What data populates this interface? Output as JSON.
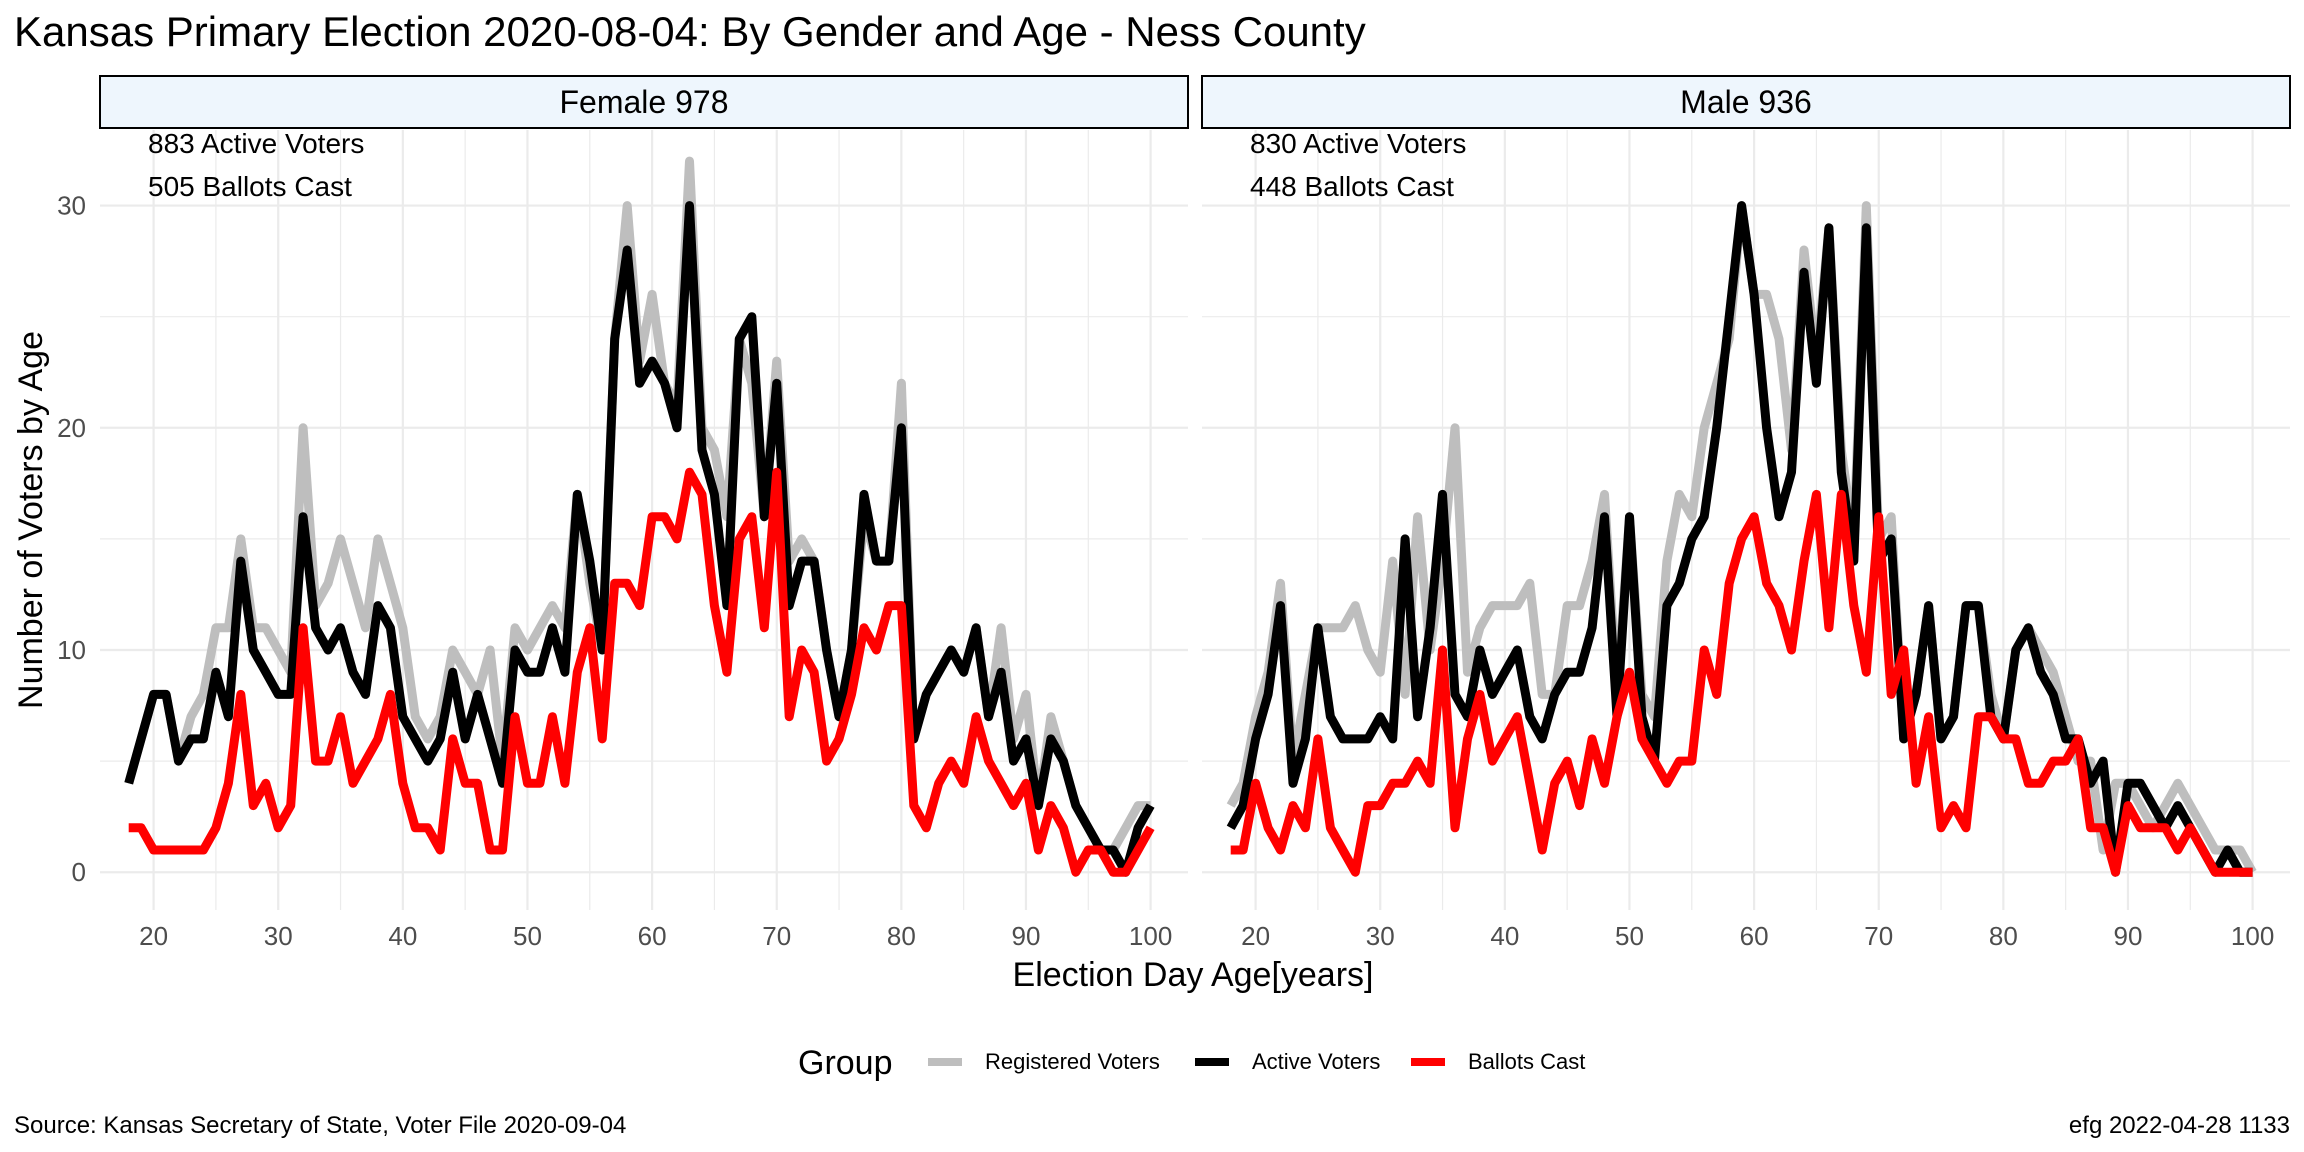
{
  "title": "Kansas Primary Election 2020-08-04:  By Gender and Age - Ness County",
  "caption_left": "Source:  Kansas Secretary of State, Voter File  2020-09-04",
  "caption_right": "efg 2022-04-28 1133",
  "colors": {
    "registered": "#bebebe",
    "active": "#000000",
    "ballots": "#ff0000",
    "strip_fill": "#eef6fd",
    "grid": "#ebebeb"
  },
  "chart_data": {
    "type": "line",
    "xlabel": "Election Day Age[years]",
    "ylabel": "Number of Voters by Age",
    "xlim": [
      18,
      100
    ],
    "ylim": [
      0,
      32
    ],
    "x_ticks": [
      20,
      30,
      40,
      50,
      60,
      70,
      80,
      90,
      100
    ],
    "y_ticks": [
      0,
      10,
      20,
      30
    ],
    "legend": {
      "title": "Group",
      "position": "bottom",
      "entries": [
        {
          "label": "Registered Voters",
          "color": "#bebebe"
        },
        {
          "label": "Active Voters",
          "color": "#000000"
        },
        {
          "label": "Ballots Cast",
          "color": "#ff0000"
        }
      ]
    },
    "panels": [
      {
        "strip": "Female 978",
        "annotations": [
          "883 Active Voters",
          "505 Ballots Cast"
        ],
        "series": [
          {
            "name": "Registered Voters",
            "x": [
              18,
              19,
              20,
              21,
              22,
              23,
              24,
              25,
              26,
              27,
              28,
              29,
              30,
              31,
              32,
              33,
              34,
              35,
              36,
              37,
              38,
              39,
              40,
              41,
              42,
              43,
              44,
              45,
              46,
              47,
              48,
              49,
              50,
              51,
              52,
              53,
              54,
              55,
              56,
              57,
              58,
              59,
              60,
              61,
              62,
              63,
              64,
              65,
              66,
              67,
              68,
              69,
              70,
              71,
              72,
              73,
              74,
              75,
              76,
              77,
              78,
              79,
              80,
              81,
              82,
              83,
              84,
              85,
              86,
              87,
              88,
              89,
              90,
              91,
              92,
              93,
              94,
              95,
              96,
              97,
              98,
              99,
              100
            ],
            "y": [
              4,
              6,
              8,
              8,
              5,
              7,
              8,
              11,
              11,
              15,
              11,
              11,
              10,
              9,
              20,
              12,
              13,
              15,
              13,
              11,
              15,
              13,
              11,
              7,
              6,
              7,
              10,
              9,
              8,
              10,
              5,
              11,
              10,
              11,
              12,
              11,
              17,
              13,
              10,
              24,
              30,
              23,
              26,
              22,
              21,
              32,
              20,
              19,
              16,
              24,
              22,
              16,
              23,
              14,
              15,
              14,
              10,
              7,
              10,
              16,
              14,
              14,
              22,
              6,
              8,
              9,
              10,
              9,
              11,
              7,
              11,
              6,
              8,
              3,
              7,
              5,
              3,
              2,
              1,
              1,
              2,
              3,
              3
            ]
          },
          {
            "name": "Active Voters",
            "x": [
              18,
              19,
              20,
              21,
              22,
              23,
              24,
              25,
              26,
              27,
              28,
              29,
              30,
              31,
              32,
              33,
              34,
              35,
              36,
              37,
              38,
              39,
              40,
              41,
              42,
              43,
              44,
              45,
              46,
              47,
              48,
              49,
              50,
              51,
              52,
              53,
              54,
              55,
              56,
              57,
              58,
              59,
              60,
              61,
              62,
              63,
              64,
              65,
              66,
              67,
              68,
              69,
              70,
              71,
              72,
              73,
              74,
              75,
              76,
              77,
              78,
              79,
              80,
              81,
              82,
              83,
              84,
              85,
              86,
              87,
              88,
              89,
              90,
              91,
              92,
              93,
              94,
              95,
              96,
              97,
              98,
              99,
              100
            ],
            "y": [
              4,
              6,
              8,
              8,
              5,
              6,
              6,
              9,
              7,
              14,
              10,
              9,
              8,
              8,
              16,
              11,
              10,
              11,
              9,
              8,
              12,
              11,
              7,
              6,
              5,
              6,
              9,
              6,
              8,
              6,
              4,
              10,
              9,
              9,
              11,
              9,
              17,
              14,
              10,
              24,
              28,
              22,
              23,
              22,
              20,
              30,
              19,
              17,
              12,
              24,
              25,
              16,
              22,
              12,
              14,
              14,
              10,
              7,
              10,
              17,
              14,
              14,
              20,
              6,
              8,
              9,
              10,
              9,
              11,
              7,
              9,
              5,
              6,
              3,
              6,
              5,
              3,
              2,
              1,
              1,
              0,
              2,
              3
            ]
          },
          {
            "name": "Ballots Cast",
            "x": [
              18,
              19,
              20,
              21,
              22,
              23,
              24,
              25,
              26,
              27,
              28,
              29,
              30,
              31,
              32,
              33,
              34,
              35,
              36,
              37,
              38,
              39,
              40,
              41,
              42,
              43,
              44,
              45,
              46,
              47,
              48,
              49,
              50,
              51,
              52,
              53,
              54,
              55,
              56,
              57,
              58,
              59,
              60,
              61,
              62,
              63,
              64,
              65,
              66,
              67,
              68,
              69,
              70,
              71,
              72,
              73,
              74,
              75,
              76,
              77,
              78,
              79,
              80,
              81,
              82,
              83,
              84,
              85,
              86,
              87,
              88,
              89,
              90,
              91,
              92,
              93,
              94,
              95,
              96,
              97,
              98,
              99,
              100
            ],
            "y": [
              2,
              2,
              1,
              1,
              1,
              1,
              1,
              2,
              4,
              8,
              3,
              4,
              2,
              3,
              11,
              5,
              5,
              7,
              4,
              5,
              6,
              8,
              4,
              2,
              2,
              1,
              6,
              4,
              4,
              1,
              1,
              7,
              4,
              4,
              7,
              4,
              9,
              11,
              6,
              13,
              13,
              12,
              16,
              16,
              15,
              18,
              17,
              12,
              9,
              15,
              16,
              11,
              18,
              7,
              10,
              9,
              5,
              6,
              8,
              11,
              10,
              12,
              12,
              3,
              2,
              4,
              5,
              4,
              7,
              5,
              4,
              3,
              4,
              1,
              3,
              2,
              0,
              1,
              1,
              0,
              0,
              1,
              2
            ]
          }
        ]
      },
      {
        "strip": "Male 936",
        "annotations": [
          "830 Active Voters",
          "448 Ballots Cast"
        ],
        "series": [
          {
            "name": "Registered Voters",
            "x": [
              18,
              19,
              20,
              21,
              22,
              23,
              24,
              25,
              26,
              27,
              28,
              29,
              30,
              31,
              32,
              33,
              34,
              35,
              36,
              37,
              38,
              39,
              40,
              41,
              42,
              43,
              44,
              45,
              46,
              47,
              48,
              49,
              50,
              51,
              52,
              53,
              54,
              55,
              56,
              57,
              58,
              59,
              60,
              61,
              62,
              63,
              64,
              65,
              66,
              67,
              68,
              69,
              70,
              71,
              72,
              73,
              74,
              75,
              76,
              77,
              78,
              79,
              80,
              81,
              82,
              83,
              84,
              85,
              86,
              87,
              88,
              89,
              90,
              91,
              92,
              93,
              94,
              95,
              96,
              97,
              98,
              99,
              100
            ],
            "y": [
              3,
              4,
              7,
              9,
              13,
              5,
              8,
              11,
              11,
              11,
              12,
              10,
              9,
              14,
              8,
              16,
              10,
              14,
              20,
              9,
              11,
              12,
              12,
              12,
              13,
              8,
              8,
              12,
              12,
              14,
              17,
              8,
              16,
              8,
              7,
              14,
              17,
              16,
              20,
              22,
              24,
              30,
              26,
              26,
              24,
              19,
              28,
              23,
              29,
              19,
              15,
              30,
              15,
              16,
              6,
              8,
              12,
              6,
              7,
              12,
              12,
              8,
              6,
              10,
              11,
              10,
              9,
              7,
              5,
              5,
              1,
              4,
              4,
              3,
              2,
              3,
              4,
              3,
              2,
              1,
              1,
              1,
              0
            ]
          },
          {
            "name": "Active Voters",
            "x": [
              18,
              19,
              20,
              21,
              22,
              23,
              24,
              25,
              26,
              27,
              28,
              29,
              30,
              31,
              32,
              33,
              34,
              35,
              36,
              37,
              38,
              39,
              40,
              41,
              42,
              43,
              44,
              45,
              46,
              47,
              48,
              49,
              50,
              51,
              52,
              53,
              54,
              55,
              56,
              57,
              58,
              59,
              60,
              61,
              62,
              63,
              64,
              65,
              66,
              67,
              68,
              69,
              70,
              71,
              72,
              73,
              74,
              75,
              76,
              77,
              78,
              79,
              80,
              81,
              82,
              83,
              84,
              85,
              86,
              87,
              88,
              89,
              90,
              91,
              92,
              93,
              94,
              95,
              96,
              97,
              98,
              99,
              100
            ],
            "y": [
              2,
              3,
              6,
              8,
              12,
              4,
              6,
              11,
              7,
              6,
              6,
              6,
              7,
              6,
              15,
              7,
              11,
              17,
              8,
              7,
              10,
              8,
              9,
              10,
              7,
              6,
              8,
              9,
              9,
              11,
              16,
              7,
              16,
              7,
              5,
              12,
              13,
              15,
              16,
              20,
              25,
              30,
              26,
              20,
              16,
              18,
              27,
              22,
              29,
              18,
              14,
              29,
              14,
              15,
              6,
              8,
              12,
              6,
              7,
              12,
              12,
              7,
              6,
              10,
              11,
              9,
              8,
              6,
              6,
              4,
              5,
              0,
              4,
              4,
              3,
              2,
              3,
              2,
              1,
              0,
              1,
              0,
              0
            ]
          },
          {
            "name": "Ballots Cast",
            "x": [
              18,
              19,
              20,
              21,
              22,
              23,
              24,
              25,
              26,
              27,
              28,
              29,
              30,
              31,
              32,
              33,
              34,
              35,
              36,
              37,
              38,
              39,
              40,
              41,
              42,
              43,
              44,
              45,
              46,
              47,
              48,
              49,
              50,
              51,
              52,
              53,
              54,
              55,
              56,
              57,
              58,
              59,
              60,
              61,
              62,
              63,
              64,
              65,
              66,
              67,
              68,
              69,
              70,
              71,
              72,
              73,
              74,
              75,
              76,
              77,
              78,
              79,
              80,
              81,
              82,
              83,
              84,
              85,
              86,
              87,
              88,
              89,
              90,
              91,
              92,
              93,
              94,
              95,
              96,
              97,
              98,
              99,
              100
            ],
            "y": [
              1,
              1,
              4,
              2,
              1,
              3,
              2,
              6,
              2,
              1,
              0,
              3,
              3,
              4,
              4,
              5,
              4,
              10,
              2,
              6,
              8,
              5,
              6,
              7,
              4,
              1,
              4,
              5,
              3,
              6,
              4,
              7,
              9,
              6,
              5,
              4,
              5,
              5,
              10,
              8,
              13,
              15,
              16,
              13,
              12,
              10,
              14,
              17,
              11,
              17,
              12,
              9,
              16,
              8,
              10,
              4,
              7,
              2,
              3,
              2,
              7,
              7,
              6,
              6,
              4,
              4,
              5,
              5,
              6,
              2,
              2,
              0,
              3,
              2,
              2,
              2,
              1,
              2,
              1,
              0,
              0,
              0,
              0
            ]
          }
        ]
      }
    ]
  }
}
